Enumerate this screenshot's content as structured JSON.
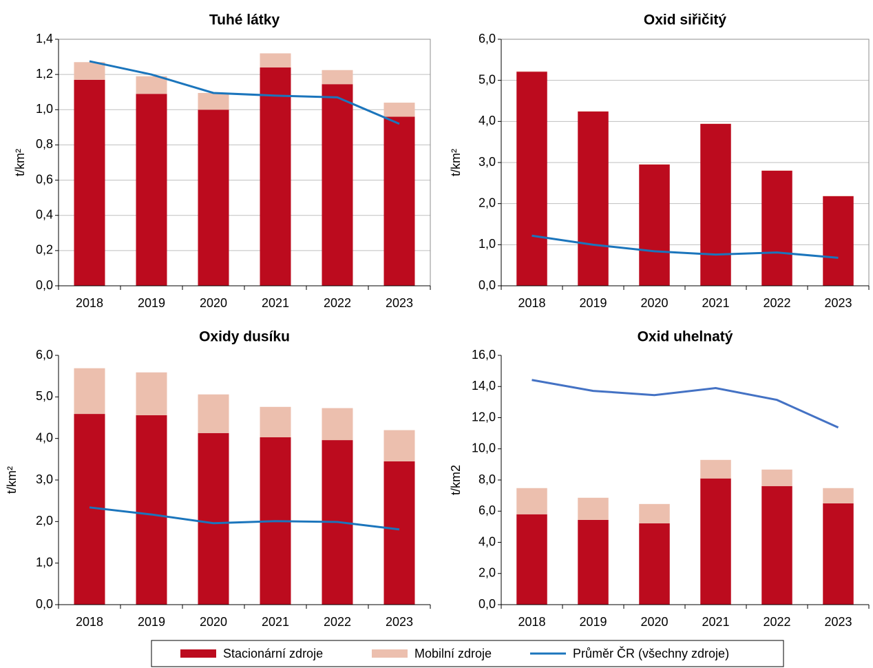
{
  "chart_data": [
    {
      "type": "bar",
      "stacked": true,
      "title": "Tuhé látky",
      "ylabel": "t/km²",
      "categories": [
        "2018",
        "2019",
        "2020",
        "2021",
        "2022",
        "2023"
      ],
      "series": [
        {
          "name": "Stacionární zdroje",
          "color": "#bc0b1e",
          "values": [
            1.17,
            1.09,
            1.0,
            1.24,
            1.145,
            0.96
          ]
        },
        {
          "name": "Mobilní zdroje",
          "color": "#ecbfae",
          "values": [
            0.1,
            0.1,
            0.095,
            0.08,
            0.08,
            0.08
          ]
        },
        {
          "name": "Průměr ČR (všechny zdroje)",
          "type": "line",
          "color": "#1b75bc",
          "values": [
            1.275,
            1.2,
            1.095,
            1.08,
            1.07,
            0.92
          ]
        }
      ],
      "ylim": [
        0,
        1.4
      ],
      "yticks": [
        {
          "value": 0,
          "label": "0,0"
        },
        {
          "value": 0.2,
          "label": "0,2"
        },
        {
          "value": 0.4,
          "label": "0,4"
        },
        {
          "value": 0.6,
          "label": "0,6"
        },
        {
          "value": 0.8,
          "label": "0,8"
        },
        {
          "value": 1.0,
          "label": "1,0"
        },
        {
          "value": 1.2,
          "label": "1,2"
        },
        {
          "value": 1.4,
          "label": "1,4"
        }
      ],
      "grid": true
    },
    {
      "type": "bar",
      "stacked": true,
      "title": "Oxid siřičitý",
      "ylabel": "t/km²",
      "categories": [
        "2018",
        "2019",
        "2020",
        "2021",
        "2022",
        "2023"
      ],
      "series": [
        {
          "name": "Stacionární zdroje",
          "color": "#bc0b1e",
          "values": [
            5.21,
            4.24,
            2.95,
            3.94,
            2.8,
            2.18
          ]
        },
        {
          "name": "Mobilní zdroje",
          "color": "#ecbfae",
          "values": [
            0.01,
            0.01,
            0.01,
            0.01,
            0.01,
            0.01
          ]
        },
        {
          "name": "Průměr ČR (všechny zdroje)",
          "type": "line",
          "color": "#1b75bc",
          "values": [
            1.22,
            1.0,
            0.84,
            0.76,
            0.81,
            0.68
          ]
        }
      ],
      "ylim": [
        0,
        6
      ],
      "yticks": [
        {
          "value": 0,
          "label": "0,0"
        },
        {
          "value": 1,
          "label": "1,0"
        },
        {
          "value": 2,
          "label": "2,0"
        },
        {
          "value": 3,
          "label": "3,0"
        },
        {
          "value": 4,
          "label": "4,0"
        },
        {
          "value": 5,
          "label": "5,0"
        },
        {
          "value": 6,
          "label": "6,0"
        }
      ],
      "grid": true
    },
    {
      "type": "bar",
      "stacked": true,
      "title": "Oxidy dusíku",
      "ylabel": "t/km²",
      "categories": [
        "2018",
        "2019",
        "2020",
        "2021",
        "2022",
        "2023"
      ],
      "series": [
        {
          "name": "Stacionární zdroje",
          "color": "#bc0b1e",
          "values": [
            4.59,
            4.56,
            4.13,
            4.03,
            3.96,
            3.45
          ]
        },
        {
          "name": "Mobilní zdroje",
          "color": "#ecbfae",
          "values": [
            1.1,
            1.03,
            0.93,
            0.73,
            0.77,
            0.75
          ]
        },
        {
          "name": "Průměr ČR (všechny zdroje)",
          "type": "line",
          "color": "#1b75bc",
          "values": [
            2.34,
            2.17,
            1.96,
            2.01,
            1.99,
            1.81
          ]
        }
      ],
      "ylim": [
        0,
        6
      ],
      "yticks": [
        {
          "value": 0,
          "label": "0,0"
        },
        {
          "value": 1,
          "label": "1,0"
        },
        {
          "value": 2,
          "label": "2,0"
        },
        {
          "value": 3,
          "label": "3,0"
        },
        {
          "value": 4,
          "label": "4,0"
        },
        {
          "value": 5,
          "label": "5,0"
        },
        {
          "value": 6,
          "label": "6,0"
        }
      ],
      "grid": false
    },
    {
      "type": "bar",
      "stacked": true,
      "title": "Oxid uhelnatý",
      "ylabel": "t/km2",
      "categories": [
        "2018",
        "2019",
        "2020",
        "2021",
        "2022",
        "2023"
      ],
      "series": [
        {
          "name": "Stacionární zdroje",
          "color": "#bc0b1e",
          "values": [
            5.8,
            5.44,
            5.22,
            8.1,
            7.61,
            6.5
          ]
        },
        {
          "name": "Mobilní zdroje",
          "color": "#ecbfae",
          "values": [
            1.68,
            1.42,
            1.24,
            1.19,
            1.06,
            0.98
          ]
        },
        {
          "name": "Průměr ČR (všechny zdroje)",
          "type": "line",
          "color": "#4472c4",
          "values": [
            14.42,
            13.72,
            13.45,
            13.9,
            13.14,
            11.37
          ]
        }
      ],
      "ylim": [
        0,
        16
      ],
      "yticks": [
        {
          "value": 0,
          "label": "0,0"
        },
        {
          "value": 2,
          "label": "2,0"
        },
        {
          "value": 4,
          "label": "4,0"
        },
        {
          "value": 6,
          "label": "6,0"
        },
        {
          "value": 8,
          "label": "8,0"
        },
        {
          "value": 10,
          "label": "10,0"
        },
        {
          "value": 12,
          "label": "12,0"
        },
        {
          "value": 14,
          "label": "14,0"
        },
        {
          "value": 16,
          "label": "16,0"
        }
      ],
      "grid": false
    }
  ]
}
